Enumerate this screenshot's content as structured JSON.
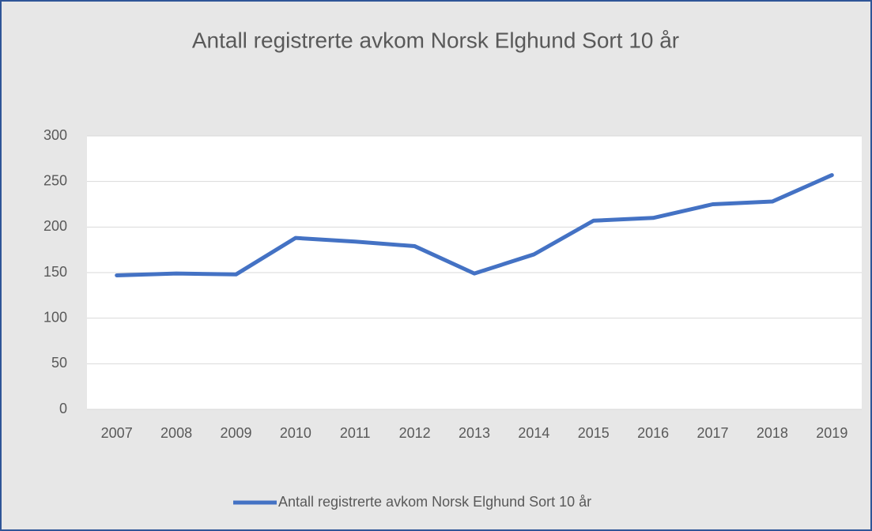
{
  "chart_data": {
    "type": "line",
    "title": "Antall registrerte avkom Norsk Elghund Sort 10 år",
    "categories": [
      "2007",
      "2008",
      "2009",
      "2010",
      "2011",
      "2012",
      "2013",
      "2014",
      "2015",
      "2016",
      "2017",
      "2018",
      "2019"
    ],
    "series": [
      {
        "name": "Antall registrerte avkom Norsk Elghund Sort 10 år",
        "color": "#4472c4",
        "values": [
          147,
          149,
          148,
          188,
          184,
          179,
          149,
          170,
          207,
          210,
          225,
          228,
          257
        ]
      }
    ],
    "ylim": [
      0,
      300
    ],
    "yticks": [
      0,
      50,
      100,
      150,
      200,
      250,
      300
    ],
    "grid": true,
    "legend": "bottom"
  }
}
